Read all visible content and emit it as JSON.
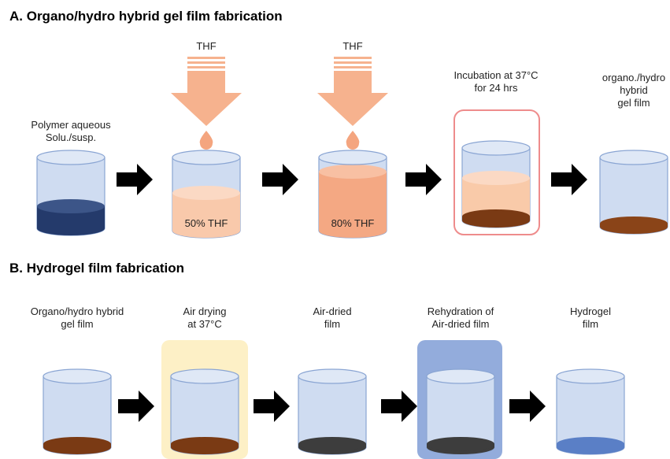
{
  "section_a": {
    "title": "A. Organo/hydro hybrid gel film fabrication",
    "steps": [
      {
        "label": [
          "Polymer aqueous",
          "Solu./susp."
        ]
      },
      {
        "input": "THF",
        "content": "50% THF"
      },
      {
        "input": "THF",
        "content": "80% THF"
      },
      {
        "label": [
          "Incubation at 37°C",
          "for 24 hrs"
        ]
      },
      {
        "label": [
          "organo./hydro",
          "hybrid",
          "gel film"
        ]
      }
    ]
  },
  "section_b": {
    "title": "B. Hydrogel film fabrication",
    "steps": [
      {
        "label": [
          "Organo/hydro hybrid",
          "gel film"
        ]
      },
      {
        "label": [
          "Air drying",
          "at 37°C"
        ]
      },
      {
        "label": [
          "Air-dried",
          "film"
        ]
      },
      {
        "label": [
          "Rehydration of",
          "Air-dried film"
        ]
      },
      {
        "label": [
          "Hydrogel",
          "film"
        ]
      }
    ]
  }
}
